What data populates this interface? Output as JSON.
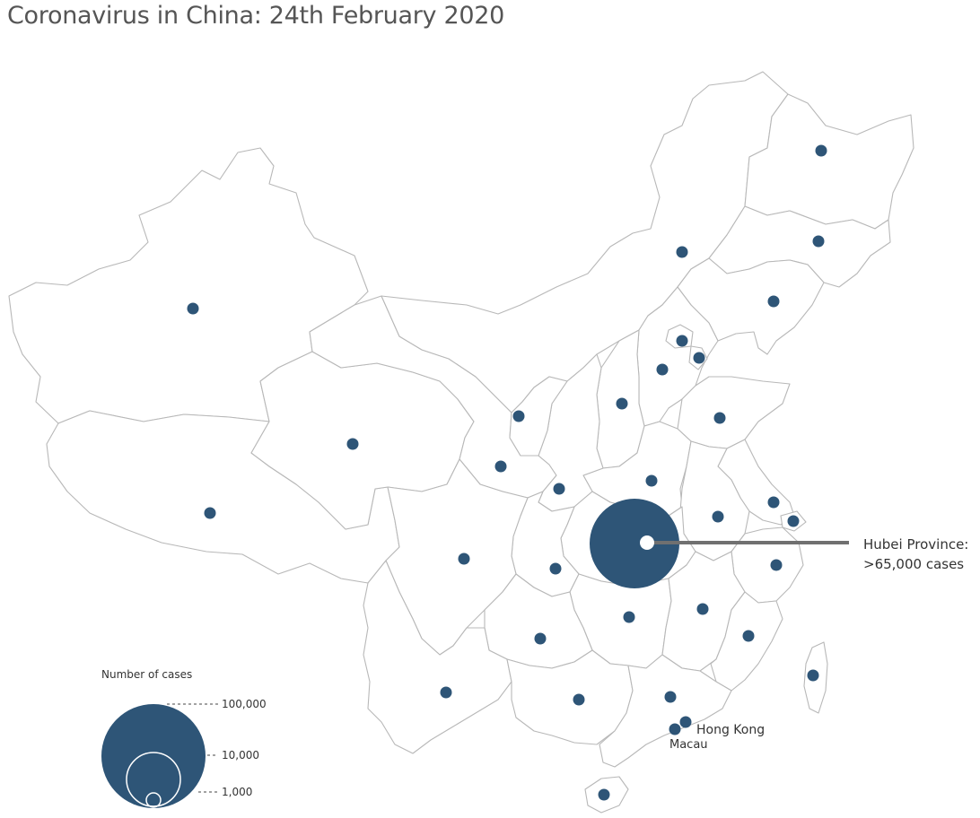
{
  "title": "Coronavirus in China: 24th February 2020",
  "colors": {
    "bubble": "#2e5577",
    "border": "#b8b8b8",
    "callout_line": "#707070",
    "title": "#555555"
  },
  "callout": {
    "line1": "Hubei Province:",
    "line2": ">65,000 cases"
  },
  "places": {
    "hong_kong": "Hong Kong",
    "macau": "Macau"
  },
  "legend": {
    "title": "Number of cases",
    "levels": [
      {
        "label": "100,000",
        "cases": 100000
      },
      {
        "label": "10,000",
        "cases": 10000
      },
      {
        "label": "1,000",
        "cases": 1000
      }
    ]
  },
  "province_count": 34
}
